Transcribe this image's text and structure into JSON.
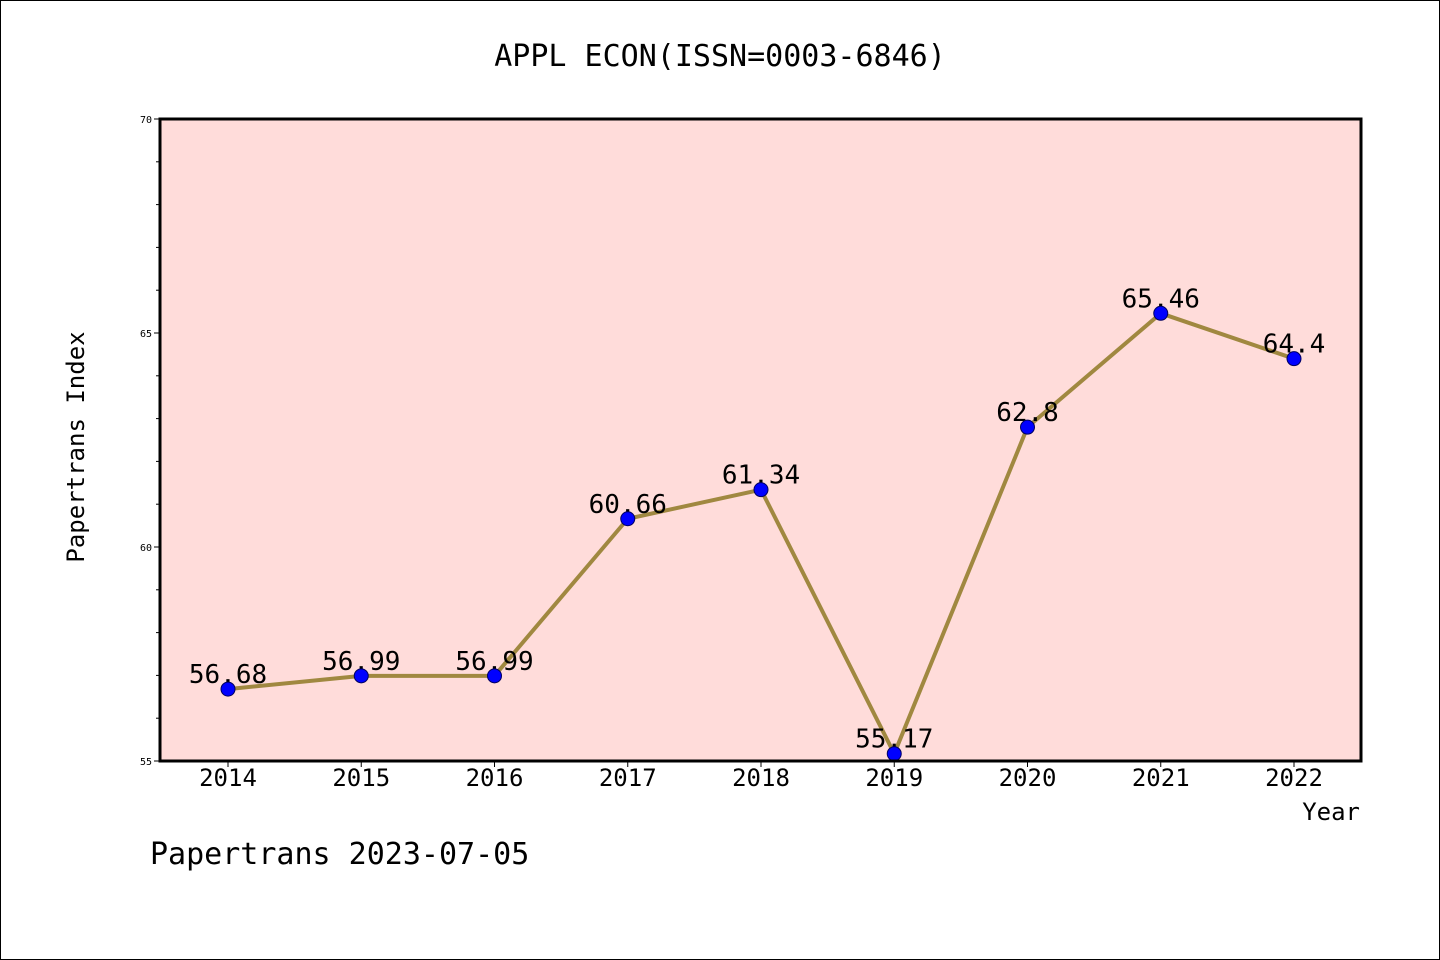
{
  "chart_data": {
    "type": "line",
    "title": "APPL ECON(ISSN=0003-6846)",
    "xlabel": "Year",
    "ylabel": "Papertrans Index",
    "categories": [
      "2014",
      "2015",
      "2016",
      "2017",
      "2018",
      "2019",
      "2020",
      "2021",
      "2022"
    ],
    "series": [
      {
        "values": [
          56.68,
          56.99,
          56.99,
          60.66,
          61.34,
          55.17,
          62.8,
          65.46,
          64.4
        ],
        "data_labels": [
          "56.68",
          "56.99",
          "56.99",
          "60.66",
          "61.34",
          "55.17",
          "62.8",
          "65.46",
          "64.4"
        ]
      }
    ],
    "ylim": [
      55,
      70
    ],
    "yticks": [
      55,
      60,
      65,
      70
    ],
    "ytick_labels": [
      "55",
      "60",
      "65",
      "70"
    ],
    "grid": false,
    "colors": {
      "plot_background": "#ffdcda",
      "line": "#a08840",
      "marker": "#0000ff"
    }
  },
  "footer": "Papertrans 2023-07-05"
}
